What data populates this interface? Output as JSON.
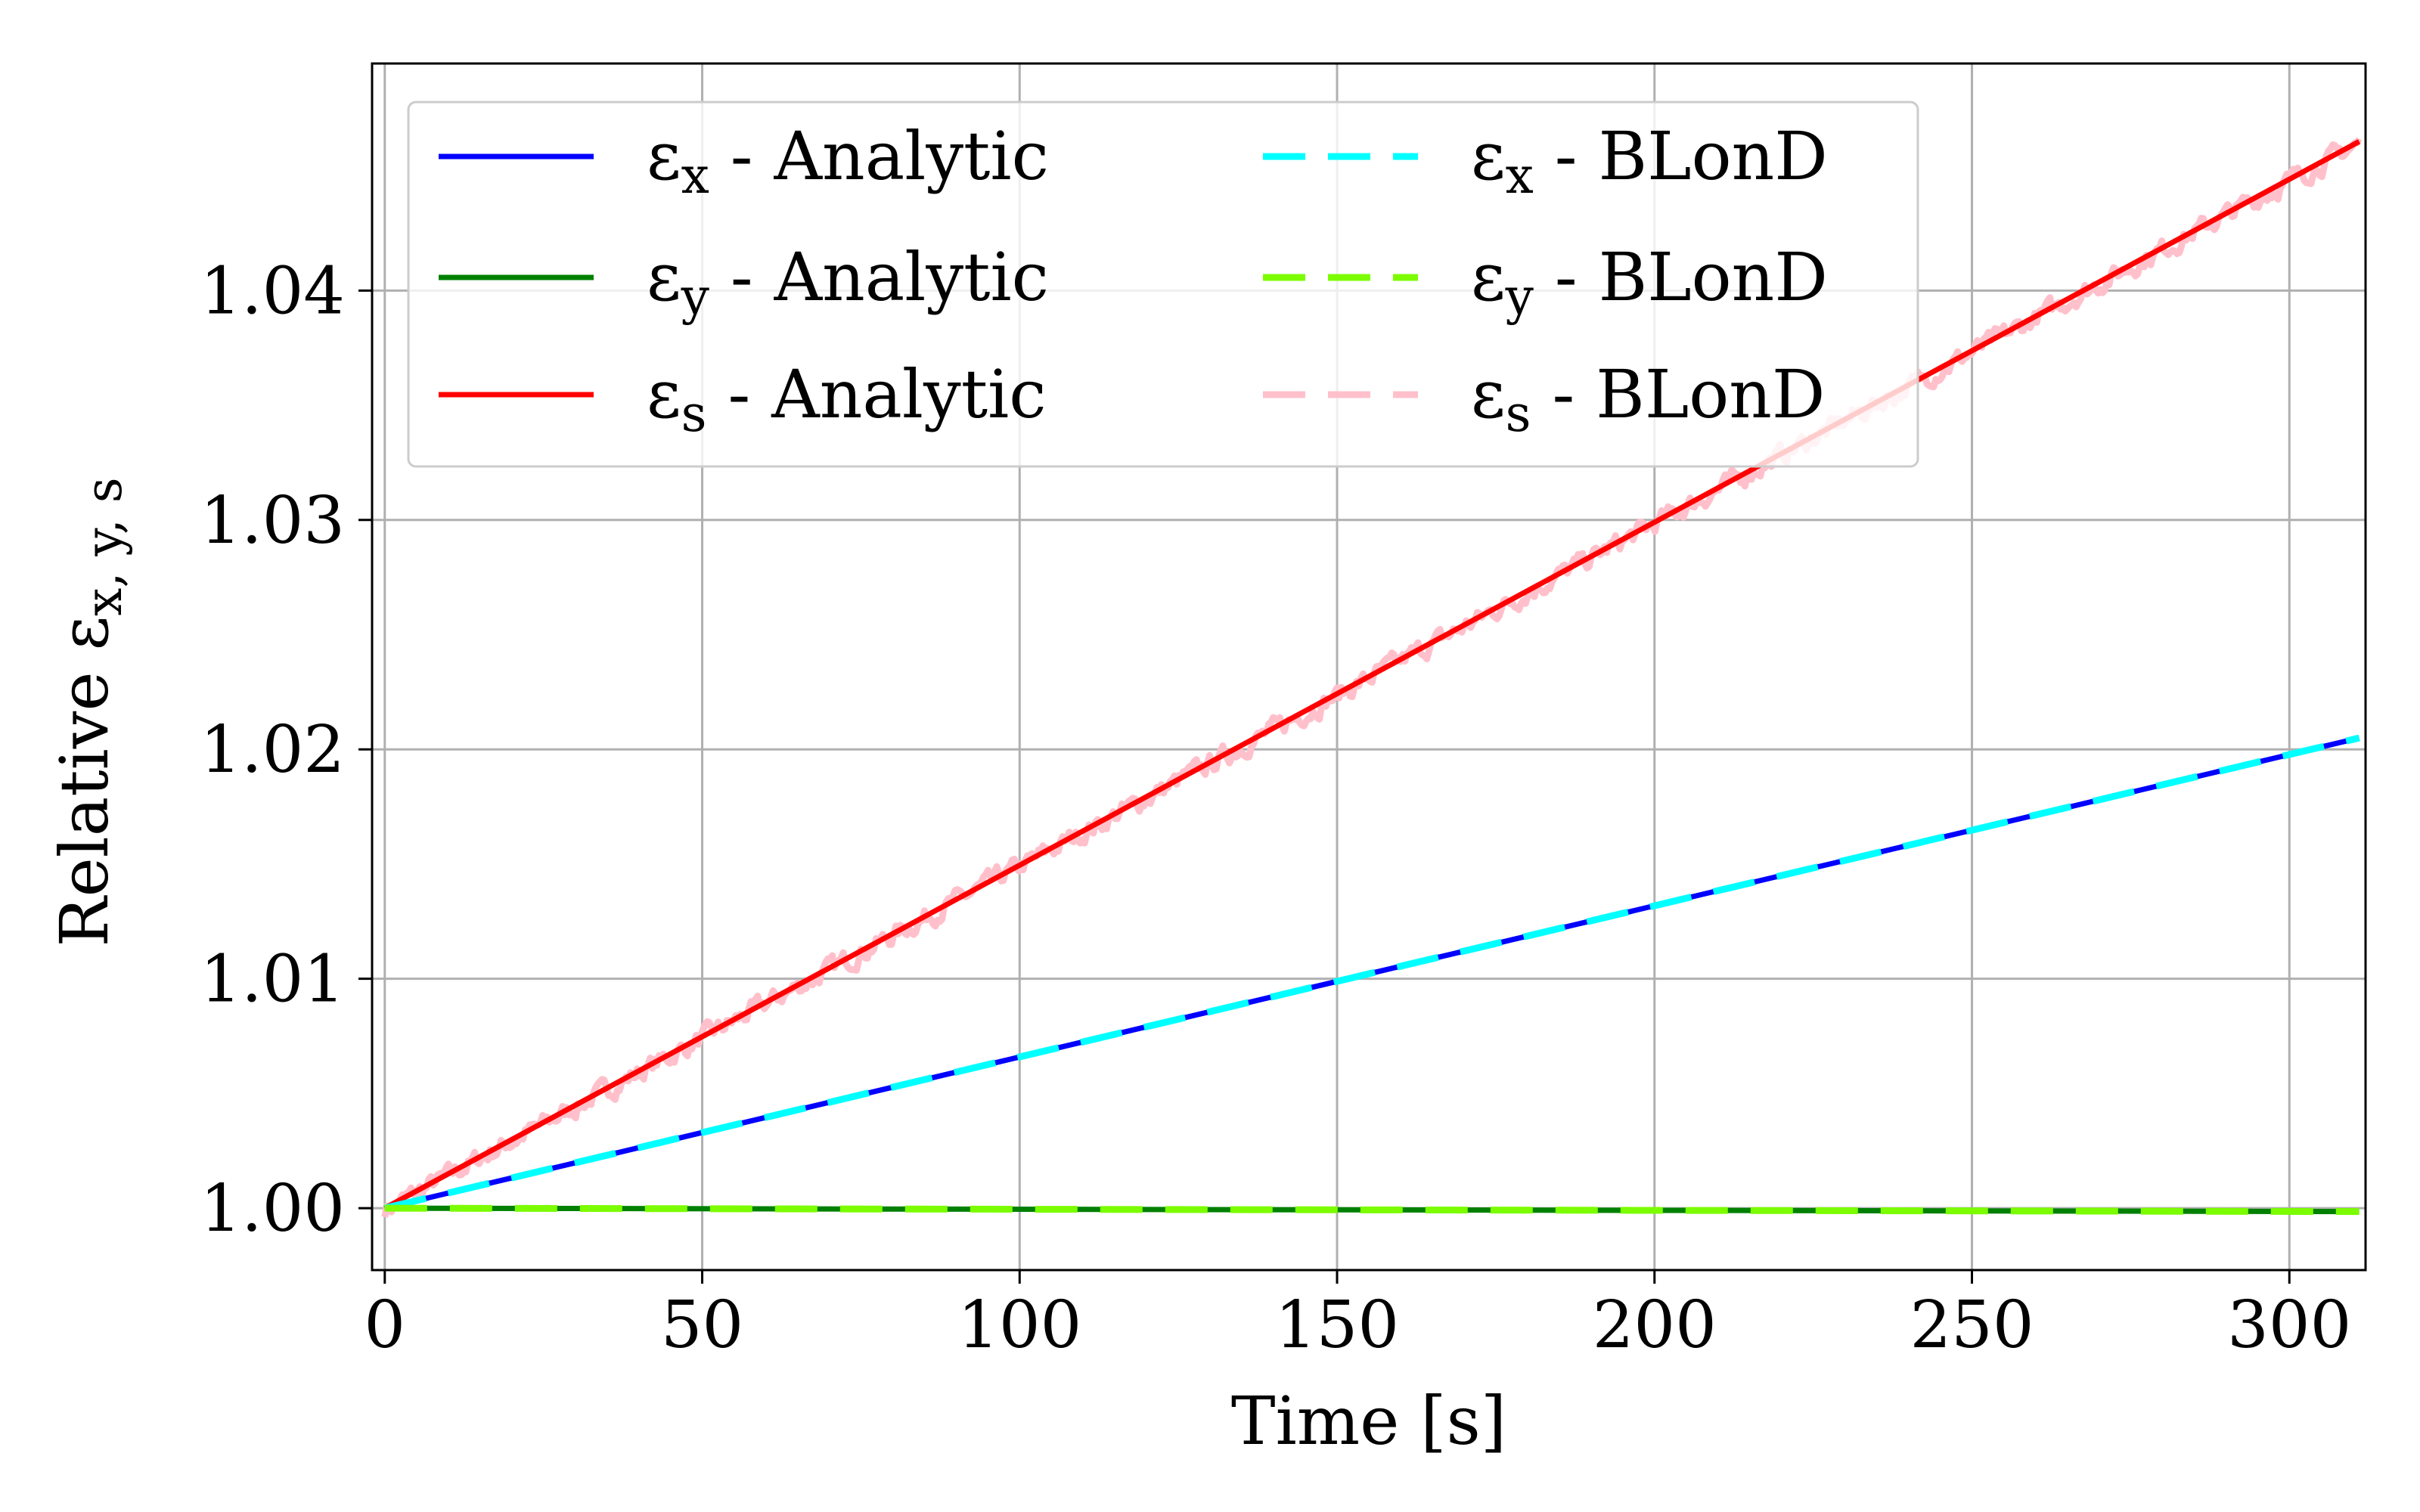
{
  "chart_data": {
    "type": "line",
    "xlabel": "Time [s]",
    "ylabel": "Relative ε",
    "ylabel_sub": "x, y, s",
    "xlim": [
      -2,
      312
    ],
    "ylim": [
      0.9973,
      1.0499
    ],
    "xticks": [
      0,
      50,
      100,
      150,
      200,
      250,
      300
    ],
    "xtick_labels": [
      "0",
      "50",
      "100",
      "150",
      "200",
      "250",
      "300"
    ],
    "yticks": [
      1.0,
      1.01,
      1.02,
      1.03,
      1.04
    ],
    "ytick_labels": [
      "1.00",
      "1.01",
      "1.02",
      "1.03",
      "1.04"
    ],
    "grid": true,
    "legend_position": "upper-left",
    "series": [
      {
        "name": "ε",
        "sub": "x",
        "suffix": " - Analytic",
        "color": "#0000ff",
        "style": "solid",
        "x": [
          0,
          311
        ],
        "y": [
          1.0,
          1.0205
        ]
      },
      {
        "name": "ε",
        "sub": "y",
        "suffix": " - Analytic",
        "color": "#008000",
        "style": "solid",
        "x": [
          0,
          311
        ],
        "y": [
          1.0,
          0.99985
        ]
      },
      {
        "name": "ε",
        "sub": "s",
        "suffix": " - Analytic",
        "color": "#ff0000",
        "style": "solid",
        "x": [
          0,
          311
        ],
        "y": [
          1.0,
          1.0465
        ]
      },
      {
        "name": "ε",
        "sub": "x",
        "suffix": " - BLonD",
        "color": "#00ffff",
        "style": "dashed",
        "x": [
          0,
          311
        ],
        "y": [
          1.0,
          1.0205
        ]
      },
      {
        "name": "ε",
        "sub": "y",
        "suffix": " - BLonD",
        "color": "#7cfc00",
        "style": "dashed",
        "x": [
          0,
          311
        ],
        "y": [
          1.0,
          0.99985
        ]
      },
      {
        "name": "ε",
        "sub": "s",
        "suffix": " - BLonD",
        "color": "#ffc0cb",
        "style": "dashed",
        "x": [
          0,
          311
        ],
        "y": [
          1.0,
          1.0465
        ],
        "noise_amplitude": 0.0007
      }
    ]
  }
}
